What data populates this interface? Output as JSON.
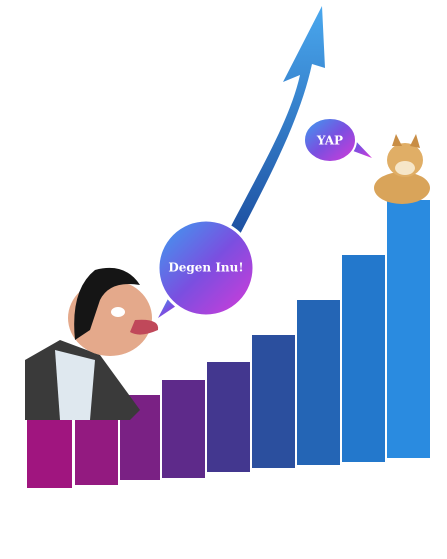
{
  "bubbles": [
    {
      "text": "Degen Inu!"
    },
    {
      "text": "YAP"
    }
  ]
}
